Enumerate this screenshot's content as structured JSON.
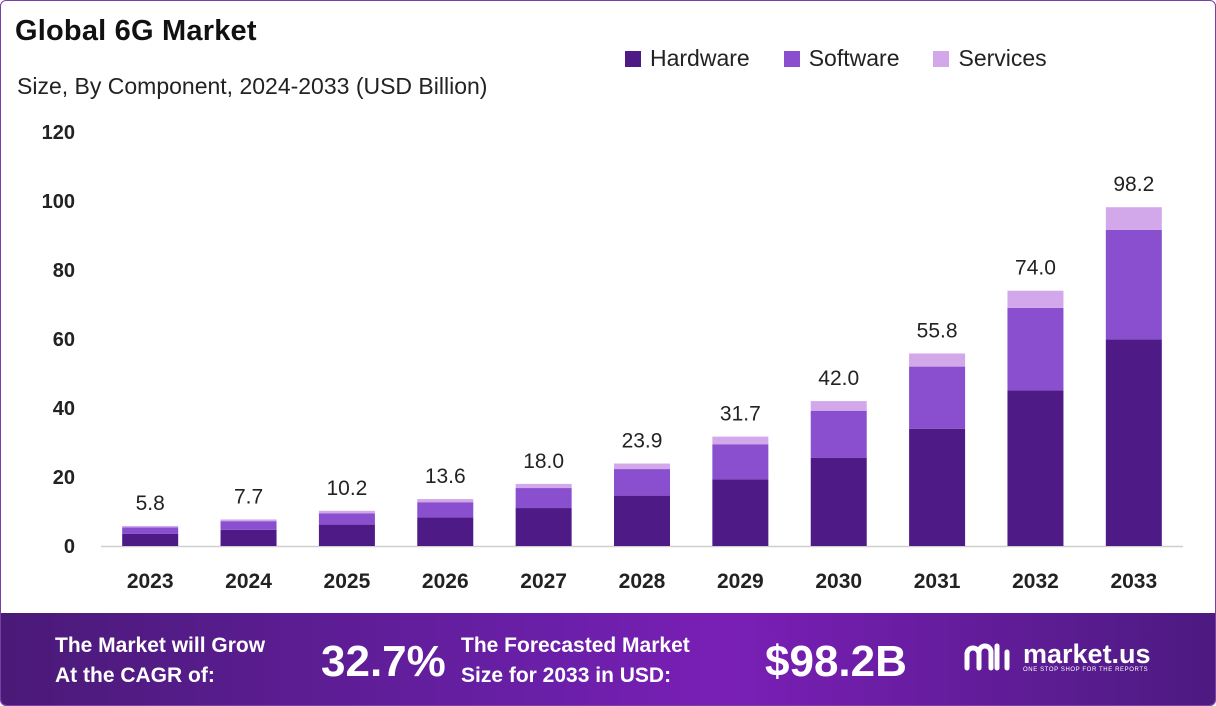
{
  "header": {
    "title": "Global 6G Market",
    "subtitle": "Size, By Component, 2024-2033 (USD Billion)"
  },
  "legend": [
    {
      "label": "Hardware",
      "color": "#4e1a86"
    },
    {
      "label": "Software",
      "color": "#8a4fcf"
    },
    {
      "label": "Services",
      "color": "#d2a8ea"
    }
  ],
  "chart_data": {
    "type": "bar",
    "stacked": true,
    "title": "Global 6G Market",
    "subtitle": "Size, By Component, 2024-2033 (USD Billion)",
    "categories": [
      "2023",
      "2024",
      "2025",
      "2026",
      "2027",
      "2028",
      "2029",
      "2030",
      "2031",
      "2032",
      "2033"
    ],
    "series": [
      {
        "name": "Hardware",
        "color": "#4e1a86",
        "values": [
          3.5,
          4.7,
          6.2,
          8.3,
          11.0,
          14.6,
          19.3,
          25.6,
          34.0,
          45.1,
          59.9
        ]
      },
      {
        "name": "Software",
        "color": "#8a4fcf",
        "values": [
          1.9,
          2.5,
          3.3,
          4.4,
          5.8,
          7.7,
          10.2,
          13.6,
          18.0,
          23.9,
          31.7
        ]
      },
      {
        "name": "Services",
        "color": "#d2a8ea",
        "values": [
          0.4,
          0.5,
          0.7,
          0.9,
          1.2,
          1.6,
          2.2,
          2.8,
          3.8,
          5.0,
          6.6
        ]
      }
    ],
    "totals": [
      "5.8",
      "7.7",
      "10.2",
      "13.6",
      "18.0",
      "23.9",
      "31.7",
      "42.0",
      "55.8",
      "74.0",
      "98.2"
    ],
    "yticks": [
      "0",
      "20",
      "40",
      "60",
      "80",
      "100",
      "120"
    ],
    "ylim": [
      0,
      120
    ],
    "xlabel": "",
    "ylabel": "",
    "grid": false,
    "legend_position": "top-right"
  },
  "footer": {
    "cagr_label_line1": "The Market will Grow",
    "cagr_label_line2": "At the CAGR of:",
    "cagr_value": "32.7%",
    "forecast_label_line1": "The Forecasted Market",
    "forecast_label_line2": "Size for 2033 in USD:",
    "forecast_value": "$98.2B",
    "brand_name": "market.us",
    "brand_tagline": "ONE STOP SHOP FOR THE REPORTS"
  }
}
